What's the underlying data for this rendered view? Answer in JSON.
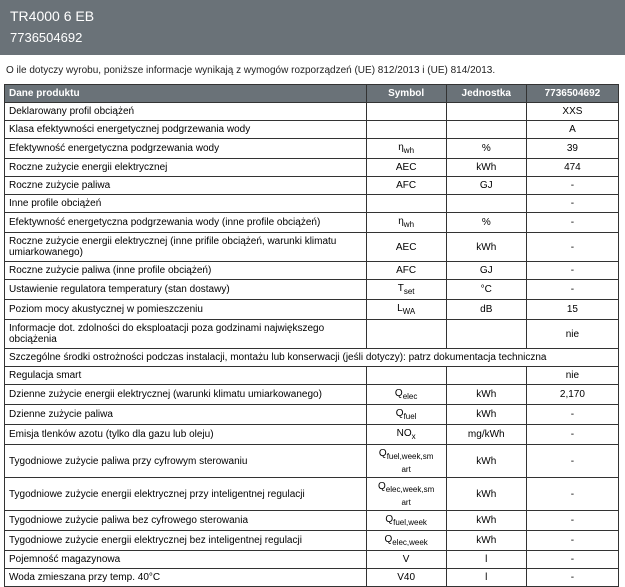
{
  "header": {
    "model": "TR4000 6 EB",
    "code": "7736504692"
  },
  "intro": "O ile dotyczy wyrobu, poniższe informacje wynikają z wymogów rozporządzeń (UE) 812/2013 i (UE) 814/2013.",
  "table": {
    "head": {
      "label": "Dane produktu",
      "symbol": "Symbol",
      "unit": "Jednostka",
      "value": "7736504692"
    },
    "rows": [
      {
        "label": "Deklarowany profil obciążeń",
        "symbol": "",
        "unit": "",
        "value": "XXS"
      },
      {
        "label": "Klasa efektywności energetycznej podgrzewania wody",
        "symbol": "",
        "unit": "",
        "value": "A"
      },
      {
        "label": "Efektywność energetyczna podgrzewania wody",
        "symbol_html": "η<span class='sub'>wh</span>",
        "unit": "%",
        "value": "39"
      },
      {
        "label": "Roczne zużycie energii elektrycznej",
        "symbol": "AEC",
        "unit": "kWh",
        "value": "474"
      },
      {
        "label": "Roczne zużycie paliwa",
        "symbol": "AFC",
        "unit": "GJ",
        "value": "-"
      },
      {
        "label": "Inne profile obciążeń",
        "symbol": "",
        "unit": "",
        "value": "-"
      },
      {
        "label": "Efektywność energetyczna podgrzewania wody (inne profile obciążeń)",
        "symbol_html": "η<span class='sub'>wh</span>",
        "unit": "%",
        "value": "-"
      },
      {
        "label": "Roczne zużycie energii elektrycznej (inne prifile obciążeń, warunki klimatu umiarkowanego)",
        "symbol": "AEC",
        "unit": "kWh",
        "value": "-"
      },
      {
        "label": "Roczne zużycie paliwa (inne profile obciążeń)",
        "symbol": "AFC",
        "unit": "GJ",
        "value": "-"
      },
      {
        "label": "Ustawienie regulatora temperatury (stan dostawy)",
        "symbol_html": "T<span class='sub'>set</span>",
        "unit": "°C",
        "value": "-"
      },
      {
        "label": "Poziom mocy akustycznej w pomieszczeniu",
        "symbol_html": "L<span class='sub'>WA</span>",
        "unit": "dB",
        "value": "15"
      },
      {
        "label": "Informacje dot. zdolności do eksploatacji poza godzinami największego obciążenia",
        "symbol": "",
        "unit": "",
        "value": "nie"
      },
      {
        "full": true,
        "label": "Szczególne środki ostrożności podczas instalacji, montażu lub konserwacji (jeśli dotyczy): patrz dokumentacja techniczna"
      },
      {
        "label": "Regulacja smart",
        "symbol": "",
        "unit": "",
        "value": "nie"
      },
      {
        "label": "Dzienne zużycie energii elektrycznej (warunki klimatu umiarkowanego)",
        "symbol_html": "Q<span class='sub'>elec</span>",
        "unit": "kWh",
        "value": "2,170"
      },
      {
        "label": "Dzienne zużycie paliwa",
        "symbol_html": "Q<span class='sub'>fuel</span>",
        "unit": "kWh",
        "value": "-"
      },
      {
        "label": "Emisja tlenków azotu (tylko dla gazu lub oleju)",
        "symbol_html": "NO<span class='sub'>x</span>",
        "unit": "mg/kWh",
        "value": "-"
      },
      {
        "label": "Tygodniowe zużycie paliwa przy cyfrowym sterowaniu",
        "symbol_html": "Q<span class='sub'>fuel,week,sm<br>art</span>",
        "unit": "kWh",
        "value": "-"
      },
      {
        "label": "Tygodniowe zużycie energii elektrycznej przy inteligentnej regulacji",
        "symbol_html": "Q<span class='sub'>elec,week,sm<br>art</span>",
        "unit": "kWh",
        "value": "-"
      },
      {
        "label": "Tygodniowe zużycie paliwa bez cyfrowego sterowania",
        "symbol_html": "Q<span class='sub'>fuel,week</span>",
        "unit": "kWh",
        "value": "-"
      },
      {
        "label": "Tygodniowe zużycie energii elektrycznej bez inteligentnej regulacji",
        "symbol_html": "Q<span class='sub'>elec,week</span>",
        "unit": "kWh",
        "value": "-"
      },
      {
        "label": "Pojemność magazynowa",
        "symbol": "V",
        "unit": "l",
        "value": "-"
      },
      {
        "label": "Woda zmieszana przy temp. 40°C",
        "symbol": "V40",
        "unit": "l",
        "value": "-"
      }
    ]
  },
  "colors": {
    "header_bg": "#6a7278",
    "header_fg": "#ffffff",
    "border": "#333333",
    "text": "#222222"
  }
}
